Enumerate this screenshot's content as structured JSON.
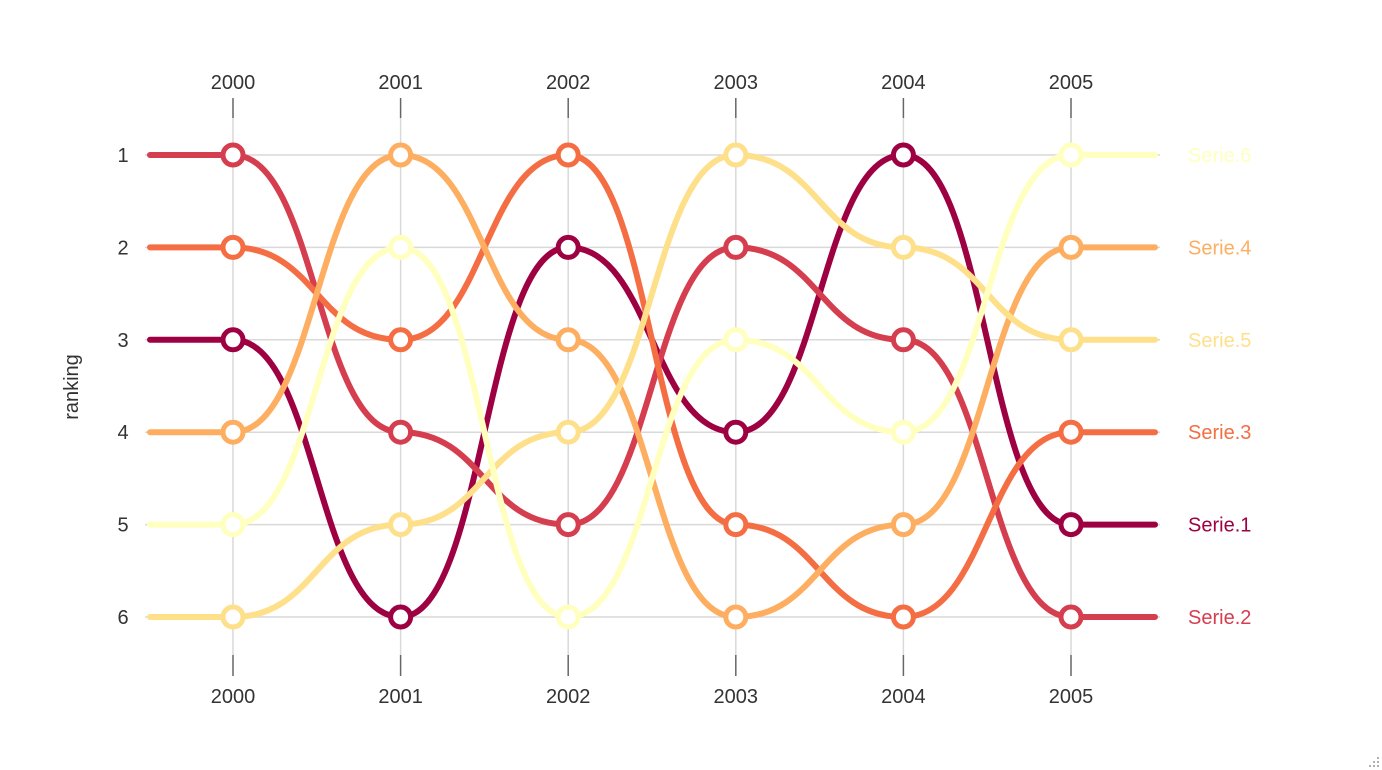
{
  "chart_data": {
    "type": "line",
    "title": "",
    "xlabel": "",
    "ylabel": "ranking",
    "categories": [
      "2000",
      "2001",
      "2002",
      "2003",
      "2004",
      "2005"
    ],
    "y_ticks": [
      "1",
      "2",
      "3",
      "4",
      "5",
      "6"
    ],
    "ylim": [
      1,
      6
    ],
    "y_reversed": true,
    "grid": true,
    "legend": "end labels right",
    "series": [
      {
        "name": "Serie.1",
        "color": "#9e0142",
        "values": [
          3,
          6,
          2,
          4,
          1,
          5
        ]
      },
      {
        "name": "Serie.2",
        "color": "#d53e4f",
        "values": [
          1,
          4,
          5,
          2,
          3,
          6
        ]
      },
      {
        "name": "Serie.3",
        "color": "#f46d43",
        "values": [
          2,
          3,
          1,
          5,
          6,
          4
        ]
      },
      {
        "name": "Serie.4",
        "color": "#fdae61",
        "values": [
          4,
          1,
          3,
          6,
          5,
          2
        ]
      },
      {
        "name": "Serie.5",
        "color": "#fee08b",
        "values": [
          6,
          5,
          4,
          1,
          2,
          3
        ]
      },
      {
        "name": "Serie.6",
        "color": "#ffffbf",
        "values": [
          5,
          2,
          6,
          3,
          4,
          1
        ]
      }
    ]
  }
}
